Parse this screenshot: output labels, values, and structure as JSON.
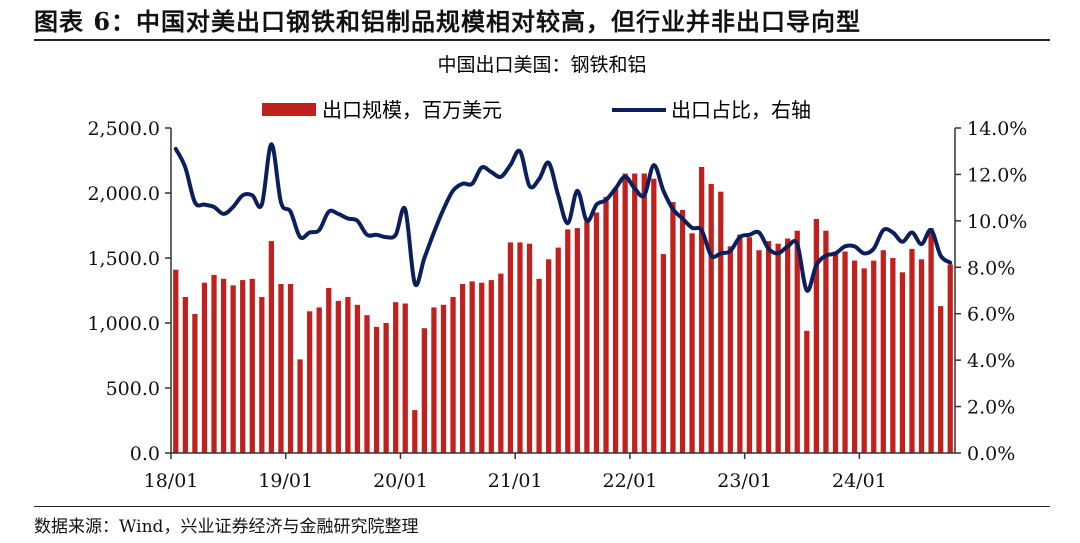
{
  "header": {
    "figure_title": "图表 6：中国对美出口钢铁和铝制品规模相对较高，但行业并非出口导向型",
    "source": "数据来源：Wind，兴业证券经济与金融研究院整理"
  },
  "colors": {
    "bar": "#c0211e",
    "line": "#0b1f5c",
    "axis": "#333333"
  },
  "chart_data": {
    "type": "bar",
    "title": "中国出口美国：钢铁和铝",
    "legend_placement": "top",
    "grid": false,
    "x_start": "2018-01",
    "x_ticks": [
      "18/01",
      "19/01",
      "20/01",
      "21/01",
      "22/01",
      "23/01",
      "24/01"
    ],
    "y_left": {
      "ticks": [
        "0.0",
        "500.0",
        "1,000.0",
        "1,500.0",
        "2,000.0",
        "2,500.0"
      ],
      "min": 0,
      "max": 2500
    },
    "y_right": {
      "ticks": [
        "0.0%",
        "2.0%",
        "4.0%",
        "6.0%",
        "8.0%",
        "10.0%",
        "12.0%",
        "14.0%"
      ],
      "min": 0,
      "max": 14
    },
    "series": [
      {
        "name": "出口规模，百万美元",
        "type": "bar",
        "axis": "left",
        "values": [
          1410,
          1200,
          1070,
          1310,
          1370,
          1340,
          1290,
          1330,
          1340,
          1200,
          1630,
          1300,
          1300,
          720,
          1090,
          1120,
          1270,
          1170,
          1200,
          1140,
          1060,
          970,
          1000,
          1160,
          1150,
          330,
          960,
          1120,
          1140,
          1200,
          1300,
          1320,
          1310,
          1330,
          1380,
          1620,
          1620,
          1610,
          1340,
          1490,
          1580,
          1720,
          1730,
          1780,
          1850,
          1970,
          2040,
          2150,
          2150,
          2150,
          2110,
          1530,
          1930,
          1870,
          1690,
          2200,
          2070,
          2010,
          1590,
          1680,
          1660,
          1560,
          1630,
          1610,
          1650,
          1710,
          940,
          1800,
          1710,
          1550,
          1550,
          1480,
          1420,
          1480,
          1560,
          1500,
          1390,
          1570,
          1490,
          1730,
          1130,
          1450
        ],
        "labels": [
          "18/01",
          "",
          "",
          "",
          "",
          "",
          "",
          "",
          "",
          "",
          "",
          "",
          "19/01",
          "",
          "",
          "",
          "",
          "",
          "",
          "",
          "",
          "",
          "",
          "",
          "20/01",
          "",
          "",
          "",
          "",
          "",
          "",
          "",
          "",
          "",
          "",
          "",
          "21/01",
          "",
          "",
          "",
          "",
          "",
          "",
          "",
          "",
          "",
          "",
          "",
          "22/01",
          "",
          "",
          "",
          "",
          "",
          "",
          "",
          "",
          "",
          "",
          "",
          "23/01",
          "",
          "",
          "",
          "",
          "",
          "",
          "",
          "",
          "",
          "",
          "",
          "24/01",
          "",
          "",
          "",
          "",
          "",
          "",
          "",
          "",
          ""
        ]
      },
      {
        "name": "出口占比，右轴",
        "type": "line",
        "axis": "right",
        "values": [
          13.1,
          12.3,
          10.8,
          10.7,
          10.6,
          10.3,
          10.6,
          11.1,
          11.1,
          10.7,
          13.3,
          10.8,
          10.4,
          9.3,
          9.5,
          9.6,
          10.4,
          10.3,
          10.1,
          10.0,
          9.4,
          9.4,
          9.3,
          9.4,
          10.5,
          7.3,
          8.4,
          9.5,
          10.5,
          11.3,
          11.6,
          11.6,
          12.3,
          12.1,
          11.9,
          12.4,
          13.0,
          11.5,
          11.8,
          12.5,
          11.1,
          9.9,
          11.3,
          10.0,
          10.7,
          10.9,
          11.4,
          11.9,
          11.4,
          11.1,
          12.4,
          11.3,
          10.5,
          10.1,
          9.7,
          9.6,
          8.5,
          8.6,
          8.7,
          9.3,
          9.4,
          9.5,
          8.8,
          8.6,
          8.9,
          9.0,
          7.0,
          8.1,
          8.5,
          8.6,
          8.9,
          8.9,
          8.6,
          8.8,
          9.6,
          9.5,
          9.1,
          9.5,
          9.0,
          9.6,
          8.5,
          8.2
        ]
      }
    ]
  }
}
